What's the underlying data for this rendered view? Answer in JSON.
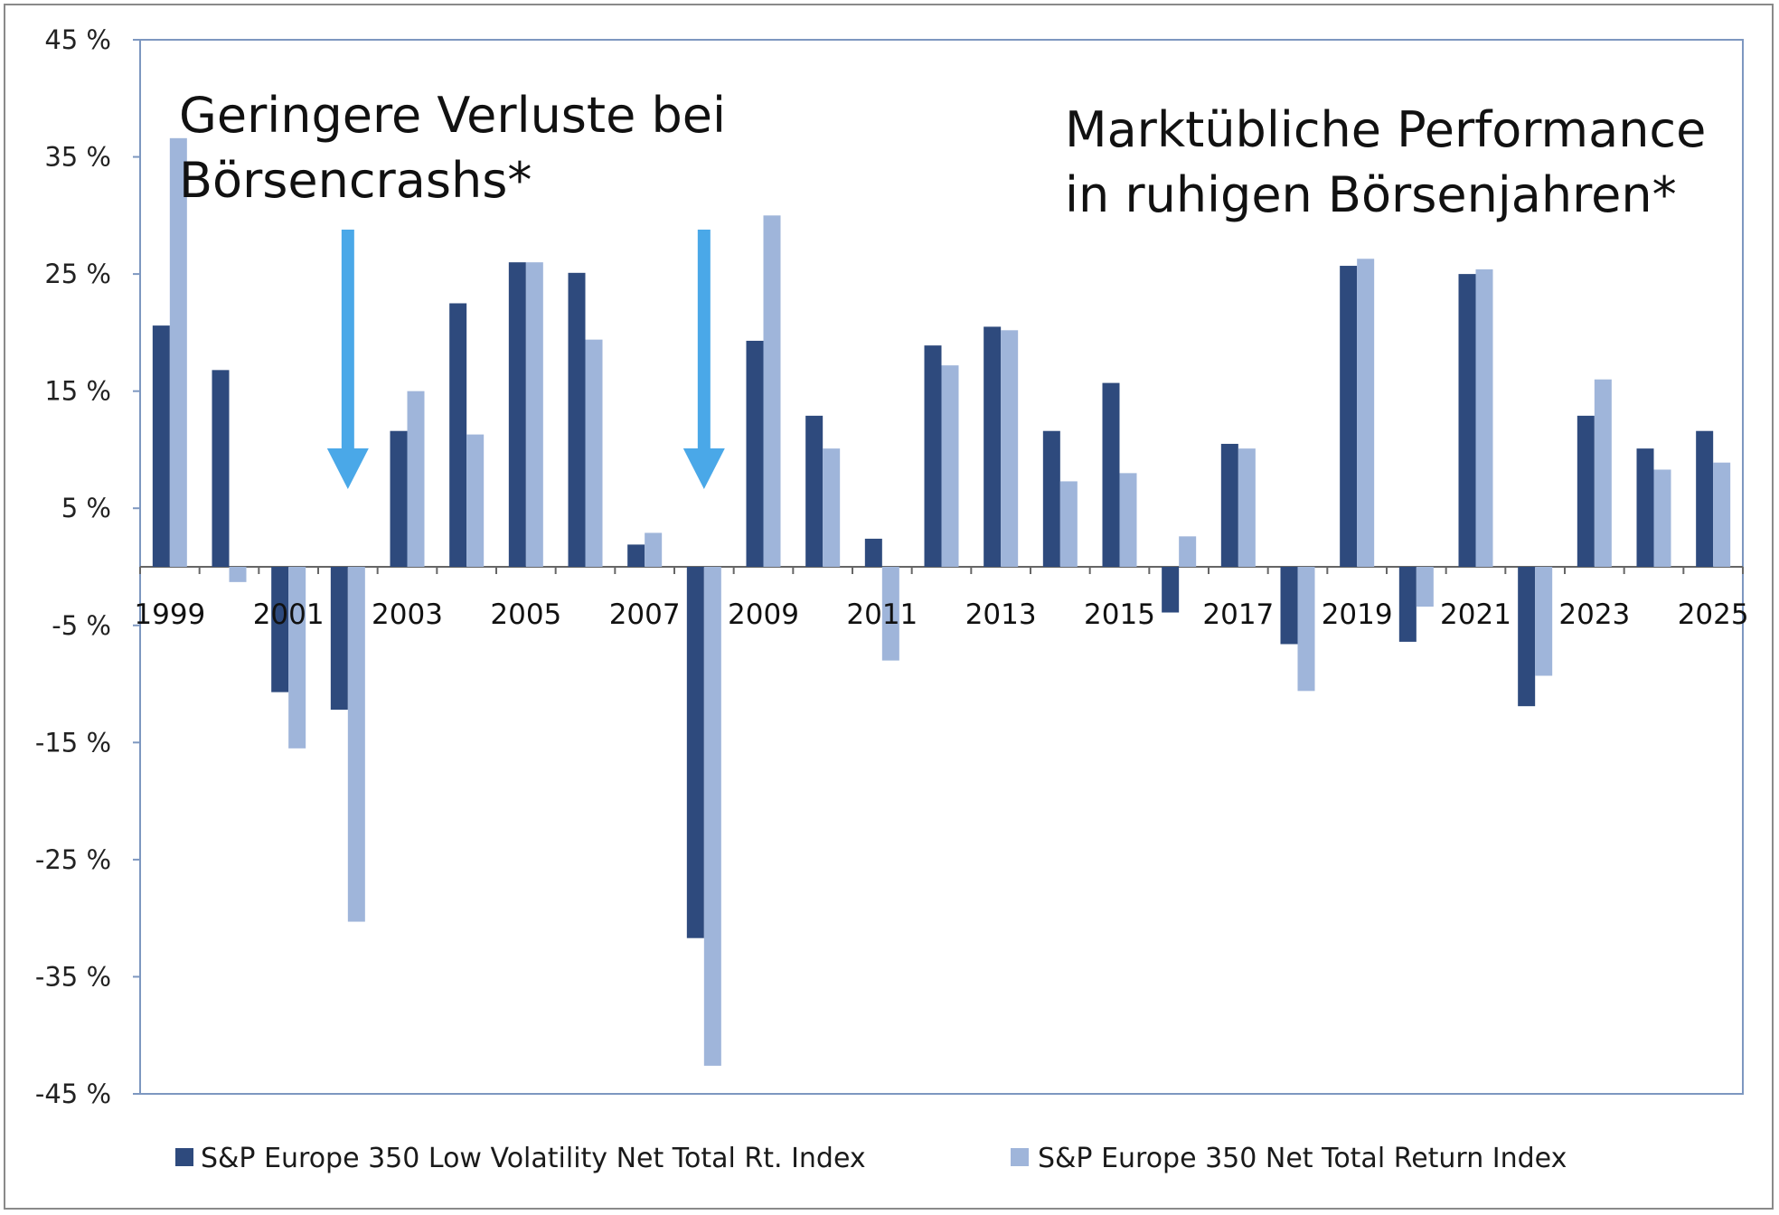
{
  "chart_data": {
    "type": "bar",
    "title": "",
    "xlabel": "",
    "ylabel": "",
    "ylim": [
      -45,
      45
    ],
    "yticks": [
      45,
      35,
      25,
      15,
      5,
      -5,
      -15,
      -25,
      -35,
      -45
    ],
    "ytick_labels": [
      "45 %",
      "35 %",
      "25 %",
      "15 %",
      "5 %",
      "-5 %",
      "-15 %",
      "-25 %",
      "-35 %",
      "-45 %"
    ],
    "categories": [
      "1999",
      "2000",
      "2001",
      "2002",
      "2003",
      "2004",
      "2005",
      "2006",
      "2007",
      "2008",
      "2009",
      "2010",
      "2011",
      "2012",
      "2013",
      "2014",
      "2015",
      "2016",
      "2017",
      "2018",
      "2019",
      "2020",
      "2021",
      "2022",
      "2023",
      "2024",
      "2025"
    ],
    "x_tick_labels": [
      "1999",
      "2001",
      "2003",
      "2005",
      "2007",
      "2009",
      "2011",
      "2013",
      "2015",
      "2017",
      "2019",
      "2021",
      "2023",
      "2025"
    ],
    "series": [
      {
        "name": "S&P Europe 350 Low Volatility Net Total Rt. Index",
        "color": "#2e4a7d",
        "values": [
          20.6,
          16.8,
          -10.7,
          -12.2,
          11.6,
          22.5,
          26.0,
          25.1,
          1.9,
          -31.7,
          19.3,
          12.9,
          2.4,
          18.9,
          20.5,
          11.6,
          15.7,
          -3.9,
          10.5,
          -6.6,
          25.7,
          -6.4,
          25.0,
          -11.9,
          12.9,
          10.1,
          11.6
        ]
      },
      {
        "name": "S&P Europe 350 Net Total Return Index",
        "color": "#9fb5da",
        "values": [
          36.6,
          -1.3,
          -15.5,
          -30.3,
          15.0,
          11.3,
          26.0,
          19.4,
          2.9,
          -42.6,
          30.0,
          10.1,
          -8.0,
          17.2,
          20.2,
          7.3,
          8.0,
          2.6,
          10.1,
          -10.6,
          26.3,
          -3.4,
          25.4,
          -9.3,
          16.0,
          8.3,
          8.9
        ]
      }
    ],
    "legend_position": "bottom",
    "grid": false
  },
  "annotations": {
    "left_line1": "Geringere Verluste bei",
    "left_line2": "Börsencrashs*",
    "right_line1": "Marktübliche Performance",
    "right_line2": "in ruhigen Börsenjahren*"
  },
  "arrow_color": "#4aa8e8",
  "arrow_icon": "down-arrow-icon",
  "arrow_categories": [
    "2002",
    "2008"
  ]
}
